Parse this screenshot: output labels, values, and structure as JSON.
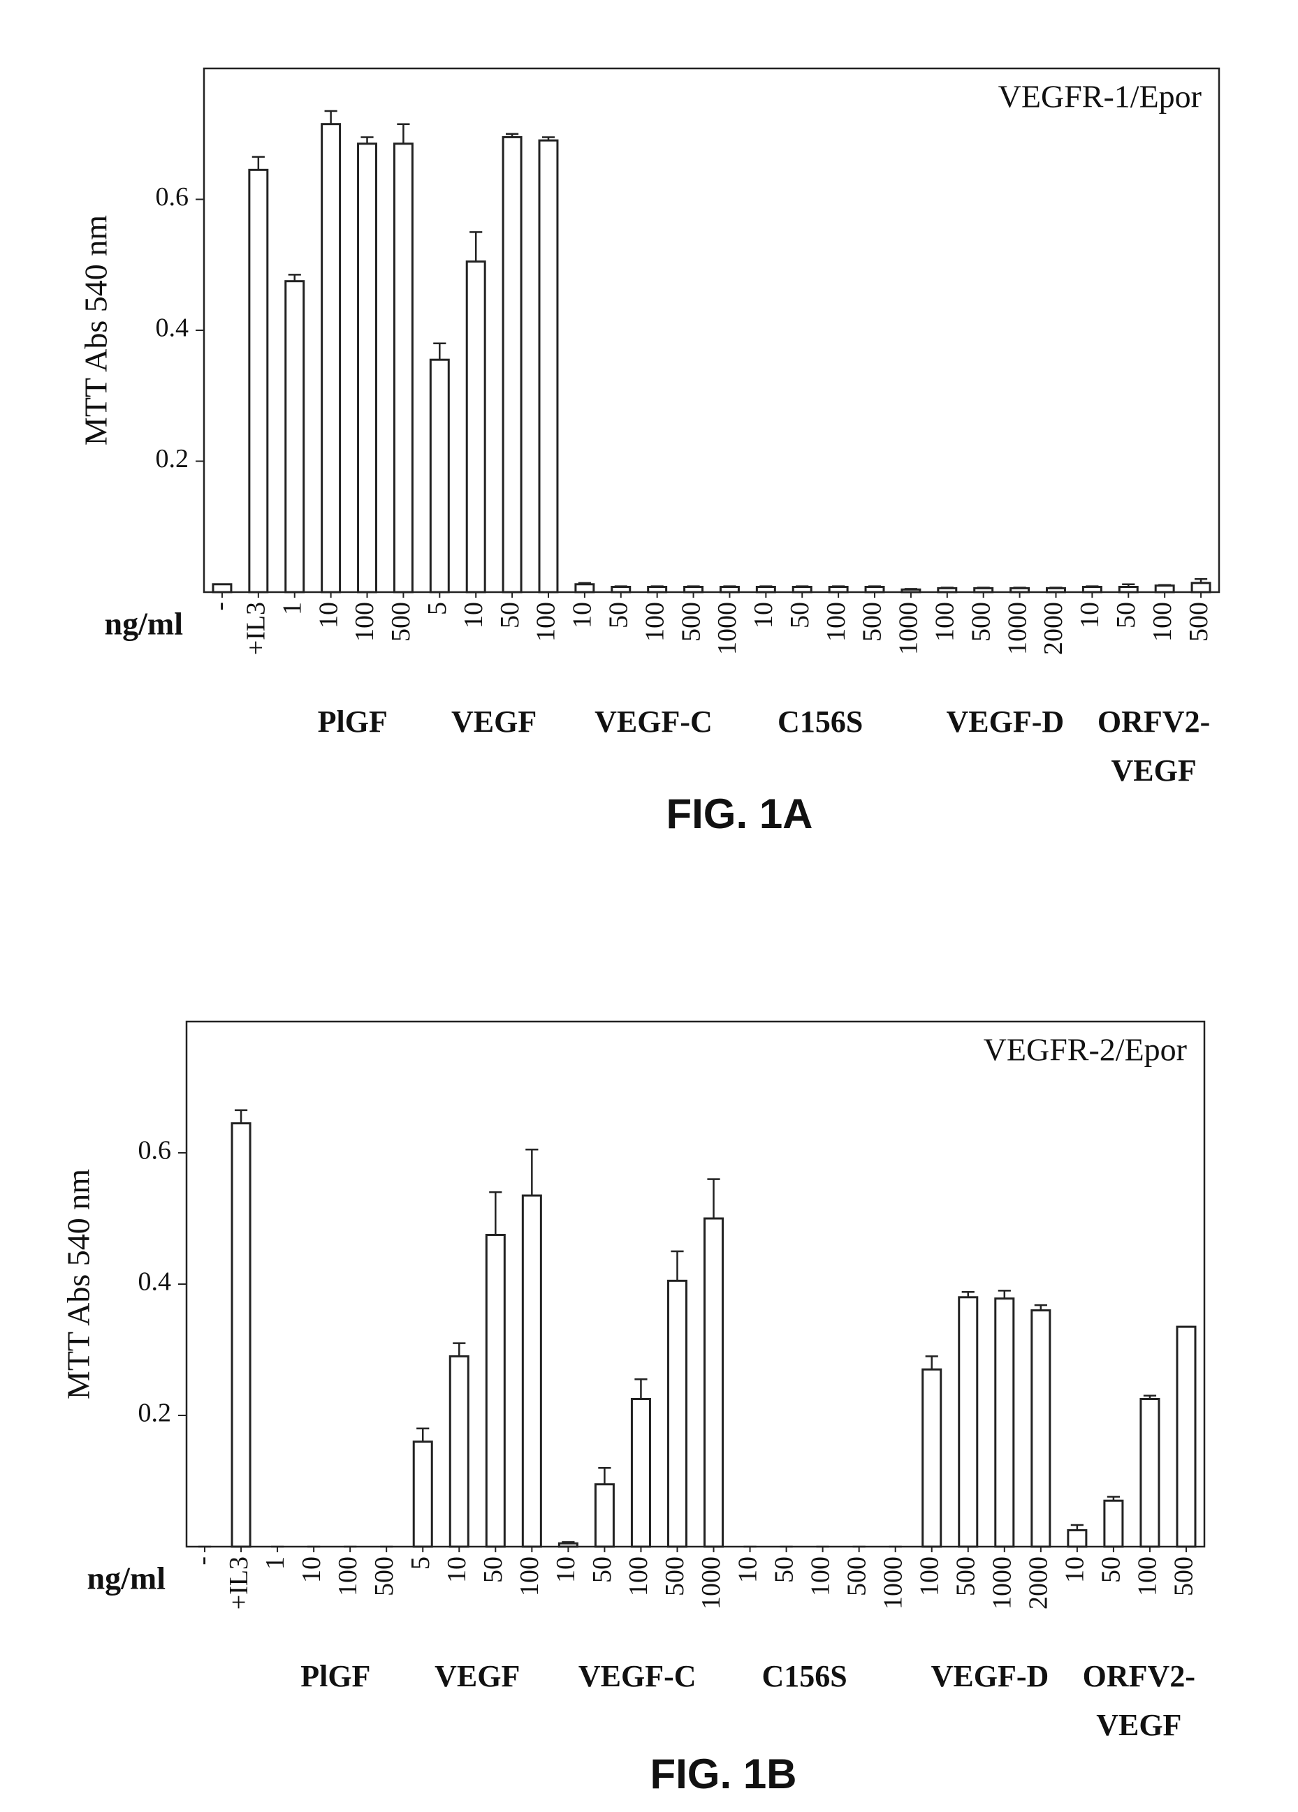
{
  "chart_data": [
    {
      "type": "bar",
      "title": "VEGFR-1/Epor",
      "y_label": "MTT Abs 540 nm",
      "x_label": "ng/ml",
      "caption": "FIG. 1A",
      "categories": [
        "-",
        "+IL3",
        "1",
        "10",
        "100",
        "500",
        "5",
        "10",
        "50",
        "100",
        "10",
        "50",
        "100",
        "500",
        "1000",
        "10",
        "50",
        "100",
        "500",
        "1000",
        "100",
        "500",
        "1000",
        "2000",
        "10",
        "50",
        "100",
        "500"
      ],
      "values": [
        0.012,
        0.645,
        0.475,
        0.715,
        0.685,
        0.685,
        0.355,
        0.505,
        0.695,
        0.69,
        0.012,
        0.008,
        0.008,
        0.008,
        0.008,
        0.008,
        0.008,
        0.008,
        0.008,
        0.004,
        0.006,
        0.006,
        0.006,
        0.006,
        0.008,
        0.008,
        0.01,
        0.014
      ],
      "errors": [
        0,
        0.02,
        0.01,
        0.02,
        0.01,
        0.03,
        0.025,
        0.045,
        0.005,
        0.005,
        0.002,
        0.001,
        0.001,
        0.001,
        0.001,
        0.001,
        0.001,
        0.001,
        0.001,
        0.001,
        0.001,
        0.001,
        0.001,
        0.001,
        0.001,
        0.004,
        0.001,
        0.006
      ],
      "groups": [
        "PlGF",
        "VEGF",
        "VEGF-C",
        "C156S",
        "VEGF-D",
        "ORFV2-\nVEGF"
      ],
      "color": "#ffffff",
      "ylim": [
        0,
        0.8
      ],
      "yticks": [
        0.2,
        0.4,
        0.6
      ]
    },
    {
      "type": "bar",
      "title": "VEGFR-2/Epor",
      "y_label": "MTT Abs 540 nm",
      "x_label": "ng/ml",
      "caption": "FIG. 1B",
      "categories": [
        "-",
        "+IL3",
        "1",
        "10",
        "100",
        "500",
        "5",
        "10",
        "50",
        "100",
        "10",
        "50",
        "100",
        "500",
        "1000",
        "10",
        "50",
        "100",
        "500",
        "1000",
        "100",
        "500",
        "1000",
        "2000",
        "10",
        "50",
        "100",
        "500"
      ],
      "values": [
        0,
        0.645,
        0,
        0,
        0,
        0,
        0.16,
        0.29,
        0.475,
        0.535,
        0.005,
        0.095,
        0.225,
        0.405,
        0.5,
        0,
        0,
        0,
        0,
        0,
        0.27,
        0.38,
        0.378,
        0.36,
        0.025,
        0.07,
        0.225,
        0.335
      ],
      "errors": [
        0,
        0.02,
        0,
        0,
        0,
        0,
        0.02,
        0.02,
        0.065,
        0.07,
        0.002,
        0.025,
        0.03,
        0.045,
        0.06,
        0,
        0,
        0,
        0,
        0,
        0.02,
        0.008,
        0.012,
        0.008,
        0.008,
        0.006,
        0.005,
        0
      ],
      "groups": [
        "PlGF",
        "VEGF",
        "VEGF-C",
        "C156S",
        "VEGF-D",
        "ORFV2-\nVEGF"
      ],
      "color": "#ffffff",
      "ylim": [
        0,
        0.8
      ],
      "yticks": [
        0.2,
        0.4,
        0.6
      ]
    }
  ]
}
